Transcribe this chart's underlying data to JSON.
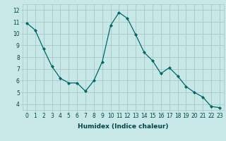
{
  "x": [
    0,
    1,
    2,
    3,
    4,
    5,
    6,
    7,
    8,
    9,
    10,
    11,
    12,
    13,
    14,
    15,
    16,
    17,
    18,
    19,
    20,
    21,
    22,
    23
  ],
  "y": [
    10.9,
    10.3,
    8.7,
    7.2,
    6.2,
    5.8,
    5.8,
    5.1,
    6.0,
    7.6,
    10.7,
    11.8,
    11.3,
    9.9,
    8.4,
    7.7,
    6.6,
    7.1,
    6.4,
    5.5,
    5.0,
    4.6,
    3.8,
    3.7
  ],
  "line_color": "#006666",
  "marker": "D",
  "marker_size": 2,
  "bg_color": "#c8e8e8",
  "grid_color": "#a8c8c8",
  "xlabel": "Humidex (Indice chaleur)",
  "xlim": [
    -0.5,
    23.5
  ],
  "ylim": [
    3.5,
    12.5
  ],
  "yticks": [
    4,
    5,
    6,
    7,
    8,
    9,
    10,
    11,
    12
  ],
  "xticks": [
    0,
    1,
    2,
    3,
    4,
    5,
    6,
    7,
    8,
    9,
    10,
    11,
    12,
    13,
    14,
    15,
    16,
    17,
    18,
    19,
    20,
    21,
    22,
    23
  ],
  "label_fontsize": 6.5,
  "tick_fontsize": 5.5
}
